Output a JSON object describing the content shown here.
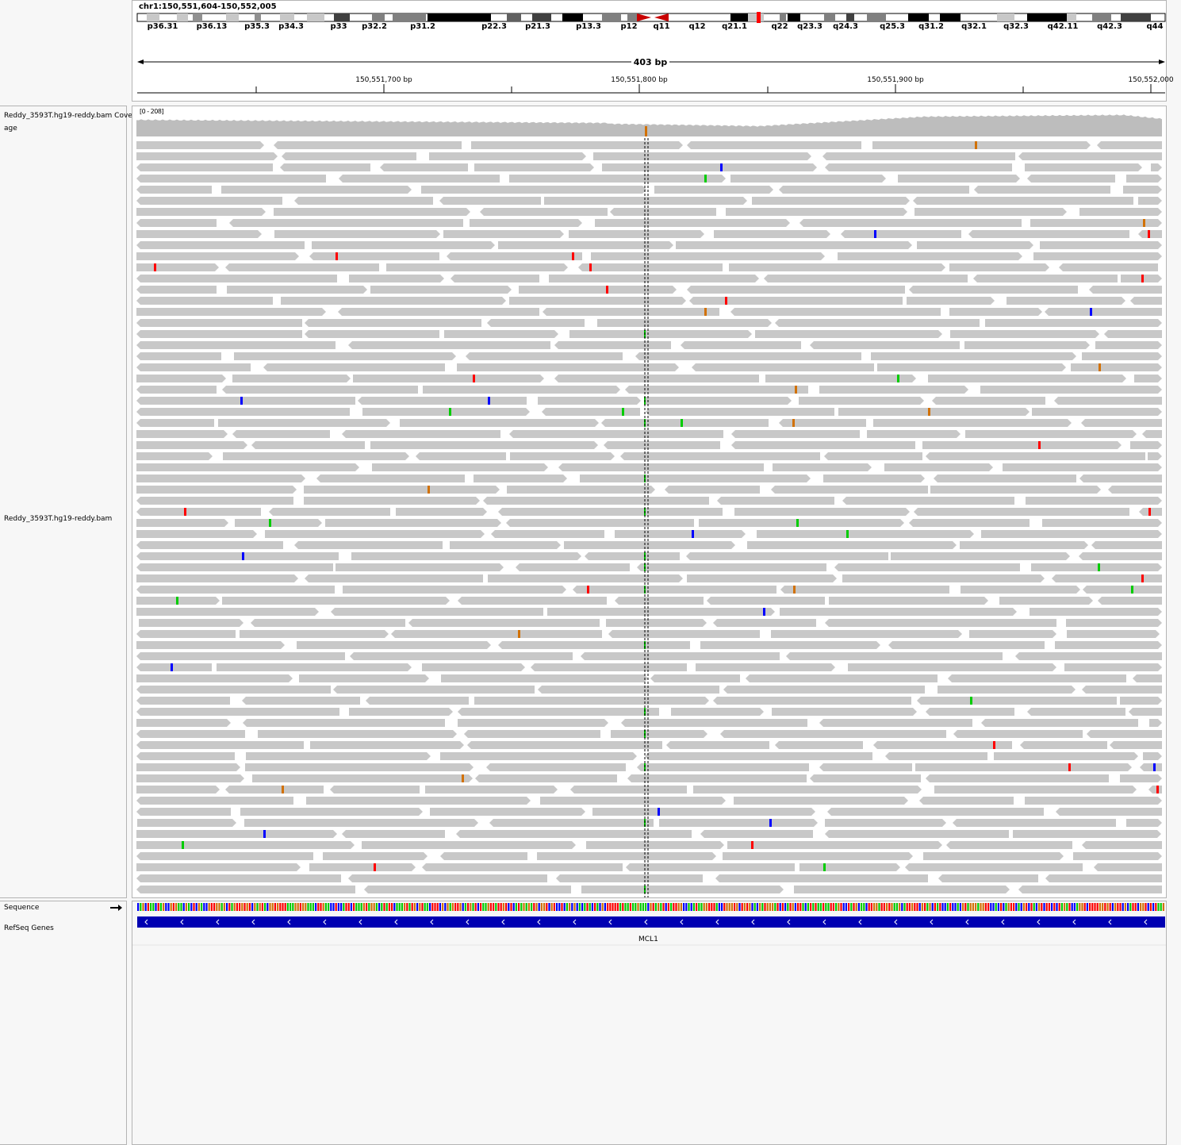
{
  "header": {
    "locus": "chr1:150,551,604-150,552,005",
    "span_label": "403 bp",
    "ruler_ticks": [
      "150,551,700 bp",
      "150,551,800 bp",
      "150,551,900 bp",
      "150,552,000"
    ]
  },
  "ideogram": {
    "bands": [
      "p36.31",
      "p36.13",
      "p35.3",
      "p34.3",
      "p33",
      "p32.2",
      "p31.2",
      "p22.3",
      "p21.3",
      "p13.3",
      "p12",
      "q11",
      "q12",
      "q21.1",
      "q22",
      "q23.3",
      "q24.3",
      "q25.3",
      "q31.2",
      "q32.1",
      "q32.3",
      "q42.11",
      "q42.3",
      "q44"
    ],
    "highlight_color": "#ff0000",
    "centromere_color": "#c80000"
  },
  "tracks": {
    "coverage_label": "Reddy_3593T.hg19-reddy.bam Coverage",
    "coverage_label_line2": "age",
    "coverage_range": "[0 - 208]",
    "alignment_label": "Reddy_3593T.hg19-reddy.bam",
    "sequence_label": "Sequence",
    "refseq_label": "RefSeq Genes"
  },
  "gene": {
    "name": "MCL1",
    "strand": "-",
    "color": "#0000b2"
  },
  "colors": {
    "read": "#c8c8c8",
    "coverage": "#bdbdbd",
    "mismatch_A": "#00cc00",
    "mismatch_C": "#0000ff",
    "mismatch_G": "#d17105",
    "mismatch_T": "#ff0000",
    "center_line": "#000000"
  }
}
